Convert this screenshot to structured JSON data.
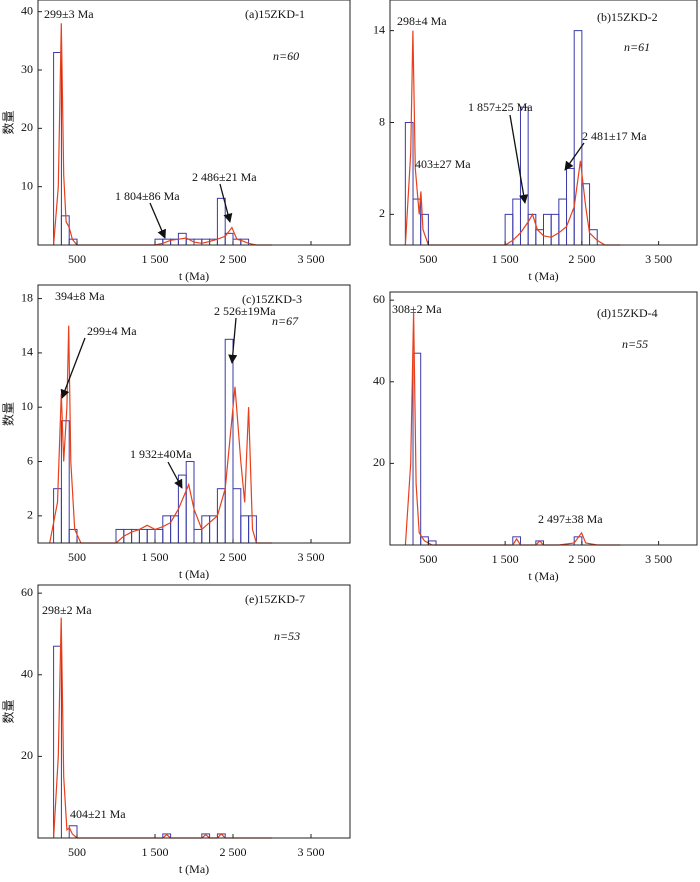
{
  "chart_data": [
    {
      "type": "histogram",
      "title": "(a)15ZKD-1",
      "note": "n=60",
      "xlabel": "t (Ma)",
      "ylabel": "数量",
      "bins": [
        0,
        100,
        200,
        300,
        400,
        500,
        600,
        700,
        800,
        900,
        1000,
        1100,
        1200,
        1300,
        1400,
        1500,
        1600,
        1700,
        1800,
        1900,
        2000,
        2100,
        2200,
        2300,
        2400,
        2500,
        2600,
        2700,
        2800,
        2900,
        3000
      ],
      "counts": [
        0,
        0,
        33,
        5,
        1,
        0,
        0,
        0,
        0,
        0,
        0,
        0,
        0,
        0,
        0,
        1,
        1,
        1,
        2,
        1,
        1,
        1,
        1,
        8,
        2,
        1,
        1,
        0,
        0,
        0
      ],
      "color": "#3a3aa8",
      "curve": {
        "color": "#e8401c",
        "x": [
          200,
          260,
          299,
          330,
          360,
          400,
          440,
          500,
          1500,
          1600,
          1700,
          1804,
          1900,
          2000,
          2100,
          2200,
          2300,
          2400,
          2486,
          2550,
          2600,
          2700,
          2800,
          3000
        ],
        "values": [
          0,
          10,
          38,
          12,
          4,
          3,
          1,
          0,
          0,
          0.3,
          0.8,
          1,
          1.2,
          0.5,
          0.3,
          0.6,
          1,
          1.5,
          3,
          1,
          0.8,
          0.3,
          0,
          0
        ]
      },
      "annotations": [
        "299±3 Ma",
        "1 804±86 Ma",
        "2 486±21 Ma"
      ],
      "xlim": [
        0,
        4000
      ],
      "xticks": [
        500,
        {
          "value": 1500,
          "label": "1 500"
        },
        {
          "value": 2500,
          "label": "2 500"
        },
        {
          "value": 3500,
          "label": "3 500"
        }
      ],
      "ylim": [
        0,
        42
      ],
      "yticks": [
        10,
        20,
        30,
        40
      ]
    },
    {
      "type": "histogram",
      "title": "(b)15ZKD-2",
      "note": "n=61",
      "xlabel": "t (Ma)",
      "bins": [
        0,
        100,
        200,
        300,
        400,
        500,
        600,
        700,
        800,
        900,
        1000,
        1100,
        1200,
        1300,
        1400,
        1500,
        1600,
        1700,
        1800,
        1900,
        2000,
        2100,
        2200,
        2300,
        2400,
        2500,
        2600,
        2700,
        2800,
        2900,
        3000
      ],
      "counts": [
        0,
        0,
        8,
        3,
        2,
        0,
        0,
        0,
        0,
        0,
        0,
        0,
        0,
        0,
        0,
        2,
        3,
        9,
        2,
        1,
        2,
        2,
        3,
        5,
        14,
        4,
        1,
        0,
        0,
        0
      ],
      "color": "#3a3aa8",
      "curve": {
        "color": "#e8401c",
        "x": [
          200,
          270,
          298,
          330,
          380,
          403,
          430,
          500,
          1500,
          1600,
          1700,
          1800,
          1857,
          1920,
          2000,
          2100,
          2200,
          2300,
          2400,
          2481,
          2550,
          2600,
          2700,
          2800,
          3000
        ],
        "values": [
          0,
          6,
          14,
          5,
          2,
          3.5,
          1,
          0,
          0,
          0.3,
          0.8,
          1.5,
          2,
          1,
          0.6,
          0.5,
          0.8,
          1.2,
          2.5,
          5.5,
          2.5,
          0.8,
          0.3,
          0,
          0
        ]
      },
      "annotations": [
        "298±4 Ma",
        "403±27 Ma",
        "1 857±25 Ma",
        "2 481±17 Ma"
      ],
      "xlim": [
        0,
        4000
      ],
      "xticks": [
        500,
        {
          "value": 1500,
          "label": "1 500"
        },
        {
          "value": 2500,
          "label": "2 500"
        },
        {
          "value": 3500,
          "label": "3 500"
        }
      ],
      "ylim": [
        0,
        16
      ],
      "yticks": [
        2,
        8,
        14
      ]
    },
    {
      "type": "histogram",
      "title": "(c)15ZKD-3",
      "note": "n=67",
      "xlabel": "t (Ma)",
      "ylabel": "数量",
      "bins": [
        0,
        100,
        200,
        300,
        400,
        500,
        600,
        700,
        800,
        900,
        1000,
        1100,
        1200,
        1300,
        1400,
        1500,
        1600,
        1700,
        1800,
        1900,
        2000,
        2100,
        2200,
        2300,
        2400,
        2500,
        2600,
        2700,
        2800,
        2900,
        3000
      ],
      "counts": [
        0,
        0,
        4,
        9,
        1,
        0,
        0,
        0,
        0,
        0,
        1,
        1,
        1,
        1,
        1,
        1,
        2,
        2,
        5,
        6,
        1,
        2,
        2,
        4,
        15,
        4,
        2,
        2,
        0,
        0
      ],
      "color": "#3a3aa8",
      "curve": {
        "color": "#e8401c",
        "x": [
          150,
          250,
          299,
          330,
          370,
          394,
          420,
          470,
          550,
          1000,
          1100,
          1200,
          1300,
          1400,
          1500,
          1600,
          1700,
          1800,
          1932,
          2000,
          2100,
          2200,
          2300,
          2400,
          2526,
          2600,
          2650,
          2700,
          2750,
          2800,
          3000
        ],
        "values": [
          0,
          3,
          11,
          6,
          10,
          16,
          6,
          1,
          0,
          0,
          0.5,
          0.8,
          1,
          1.3,
          1,
          1.2,
          1.5,
          2.5,
          4.3,
          2.5,
          1,
          1.5,
          2,
          4,
          11.5,
          6,
          3,
          10,
          1,
          0,
          0
        ]
      },
      "annotations": [
        "394±8 Ma",
        "299±4 Ma",
        "2 526±19Ma",
        "1 932±40Ma"
      ],
      "xlim": [
        0,
        4000
      ],
      "xticks": [
        500,
        {
          "value": 1500,
          "label": "1 500"
        },
        {
          "value": 2500,
          "label": "2 500"
        },
        {
          "value": 3500,
          "label": "3 500"
        }
      ],
      "ylim": [
        0,
        19
      ],
      "yticks": [
        2,
        6,
        10,
        14,
        18
      ]
    },
    {
      "type": "histogram",
      "title": "(d)15ZKD-4",
      "note": "n=55",
      "xlabel": "t (Ma)",
      "bins": [
        0,
        100,
        200,
        300,
        400,
        500,
        600,
        700,
        800,
        900,
        1000,
        1100,
        1200,
        1300,
        1400,
        1500,
        1600,
        1700,
        1800,
        1900,
        2000,
        2100,
        2200,
        2300,
        2400,
        2500,
        2600,
        2700,
        2800,
        2900,
        3000
      ],
      "counts": [
        0,
        0,
        0,
        47,
        2,
        1,
        0,
        0,
        0,
        0,
        0,
        0,
        0,
        0,
        0,
        0,
        2,
        0,
        0,
        1,
        0,
        0,
        0,
        0,
        2,
        0,
        0,
        0,
        0,
        0
      ],
      "color": "#3a3aa8",
      "curve": {
        "color": "#e8401c",
        "x": [
          200,
          270,
          308,
          340,
          380,
          450,
          550,
          1500,
          1600,
          1650,
          1700,
          1800,
          1900,
          1950,
          2000,
          2200,
          2400,
          2497,
          2550,
          2700,
          3000
        ],
        "values": [
          0,
          20,
          57,
          15,
          3,
          1,
          0,
          0,
          0,
          1.5,
          0,
          0,
          0,
          1,
          0,
          0,
          0.5,
          3,
          0.5,
          0,
          0
        ]
      },
      "annotations": [
        "308±2 Ma",
        "2 497±38 Ma"
      ],
      "xlim": [
        0,
        4000
      ],
      "xticks": [
        500,
        {
          "value": 1500,
          "label": "1 500"
        },
        {
          "value": 2500,
          "label": "2 500"
        },
        {
          "value": 3500,
          "label": "3 500"
        }
      ],
      "ylim": [
        0,
        62
      ],
      "yticks": [
        20,
        40,
        60
      ]
    },
    {
      "type": "histogram",
      "title": "(e)15ZKD-7",
      "note": "n=53",
      "xlabel": "t (Ma)",
      "ylabel": "数量",
      "bins": [
        0,
        100,
        200,
        300,
        400,
        500,
        600,
        700,
        800,
        900,
        1000,
        1100,
        1200,
        1300,
        1400,
        1500,
        1600,
        1700,
        1800,
        1900,
        2000,
        2100,
        2200,
        2300,
        2400,
        2500,
        2600,
        2700,
        2800,
        2900,
        3000
      ],
      "counts": [
        0,
        0,
        47,
        0,
        3,
        0,
        0,
        0,
        0,
        0,
        0,
        0,
        0,
        0,
        0,
        0,
        1,
        0,
        0,
        0,
        0,
        1,
        0,
        1,
        0,
        0,
        0,
        0,
        0,
        0
      ],
      "color": "#3a3aa8",
      "curve": {
        "color": "#e8401c",
        "x": [
          200,
          260,
          298,
          330,
          370,
          404,
          440,
          500,
          1500,
          1600,
          1650,
          1700,
          2100,
          2150,
          2200,
          2300,
          2350,
          2400,
          3000
        ],
        "values": [
          0,
          20,
          54,
          15,
          2,
          2.5,
          1,
          0,
          0,
          0,
          0.8,
          0,
          0,
          0.8,
          0,
          0,
          1,
          0,
          0
        ]
      },
      "annotations": [
        "298±2 Ma",
        "404±21 Ma"
      ],
      "xlim": [
        0,
        4000
      ],
      "xticks": [
        500,
        {
          "value": 1500,
          "label": "1 500"
        },
        {
          "value": 2500,
          "label": "2 500"
        },
        {
          "value": 3500,
          "label": "3 500"
        }
      ],
      "ylim": [
        0,
        62
      ],
      "yticks": [
        20,
        40,
        60
      ]
    }
  ]
}
